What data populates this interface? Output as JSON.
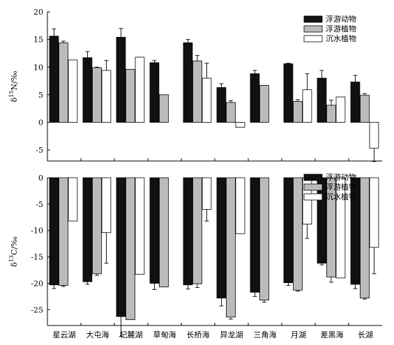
{
  "chart_data": [
    {
      "type": "bar",
      "ylabel": "δ15N/‰",
      "ylabel_parts": {
        "delta": "δ",
        "sup": "15",
        "rest": "N/‰"
      },
      "ylim": [
        -7,
        20
      ],
      "yticks": [
        -5,
        0,
        5,
        10,
        15,
        20
      ],
      "legend_position": "top-right",
      "grid": false,
      "series": [
        {
          "name": "浮游动物",
          "color": "#111111",
          "values": [
            15.6,
            11.7,
            15.4,
            10.8,
            14.4,
            6.3,
            8.8,
            10.6,
            8.0,
            7.3
          ],
          "errors": [
            1.3,
            1.1,
            1.6,
            0.4,
            0.6,
            0.7,
            0.6,
            0.1,
            1.4,
            1.2
          ]
        },
        {
          "name": "浮游植物",
          "color": "#bbbbbb",
          "values": [
            14.4,
            9.9,
            9.6,
            5.0,
            11.1,
            3.6,
            6.7,
            3.8,
            3.1,
            4.9
          ],
          "errors": [
            0.3,
            0.1,
            null,
            null,
            1.0,
            0.3,
            null,
            0.3,
            0.9,
            0.3
          ]
        },
        {
          "name": "沉水植物",
          "color": "#ffffff",
          "values": [
            11.3,
            9.4,
            11.8,
            null,
            8.0,
            -0.9,
            null,
            5.9,
            4.6,
            -4.7
          ],
          "errors": [
            null,
            1.8,
            null,
            null,
            2.7,
            null,
            null,
            2.9,
            null,
            2.4
          ]
        }
      ]
    },
    {
      "type": "bar",
      "ylabel": "δ13C/‰",
      "ylabel_parts": {
        "delta": "δ",
        "sup": "13",
        "rest": "C/‰"
      },
      "ylim": [
        -28,
        0
      ],
      "yticks": [
        -25,
        -20,
        -15,
        -10,
        -5,
        0
      ],
      "legend_position": "top-right",
      "grid": false,
      "categories": [
        "星云湖",
        "大屯海",
        "杞麓湖",
        "草甸海",
        "长桥海",
        "异龙湖",
        "三角海",
        "月湖",
        "差黑海",
        "长湖"
      ],
      "series": [
        {
          "name": "浮游动物",
          "color": "#111111",
          "values": [
            -20.3,
            -19.7,
            -26.3,
            -20.0,
            -20.3,
            -22.8,
            -21.7,
            -19.9,
            -16.2,
            -20.2
          ],
          "errors": [
            0.7,
            0.5,
            3.8,
            1.2,
            0.8,
            1.5,
            0.8,
            0.5,
            0.3,
            0.8
          ]
        },
        {
          "name": "浮游植物",
          "color": "#bbbbbb",
          "values": [
            -20.4,
            -18.2,
            -26.9,
            -20.7,
            -20.1,
            -26.4,
            -23.2,
            -21.3,
            -18.8,
            -22.8
          ],
          "errors": [
            0.2,
            0.3,
            null,
            null,
            0.7,
            0.4,
            0.4,
            0.2,
            1.0,
            0.2
          ]
        },
        {
          "name": "沉水植物",
          "color": "#ffffff",
          "values": [
            -8.2,
            -10.4,
            -18.3,
            null,
            -6.0,
            -10.6,
            null,
            -8.8,
            -19.0,
            -13.2
          ],
          "errors": [
            null,
            5.8,
            null,
            null,
            2.2,
            null,
            null,
            2.7,
            null,
            5.0
          ]
        }
      ]
    }
  ]
}
